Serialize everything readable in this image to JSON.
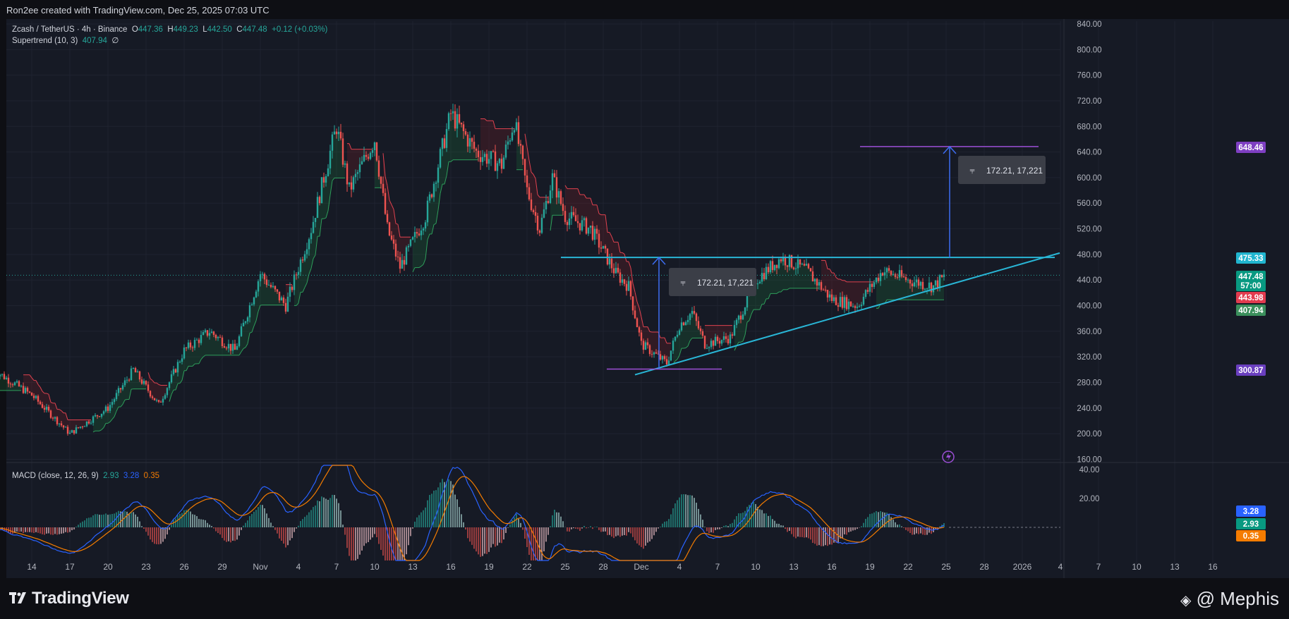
{
  "header": {
    "credit": "Ron2ee created with TradingView.com, Dec 25, 2025 07:03 UTC"
  },
  "legend": {
    "symbol": "Zcash / TetherUS · 4h · Binance",
    "open_label": "O",
    "open": "447.36",
    "high_label": "H",
    "high": "449.23",
    "low_label": "L",
    "low": "442.50",
    "close_label": "C",
    "close": "447.48",
    "change": "+0.12 (+0.03%)",
    "supertrend_label": "Supertrend (10, 3)",
    "supertrend_value": "407.94",
    "supertrend_symbol": "∅"
  },
  "macd_legend": {
    "label": "MACD (close, 12, 26, 9)",
    "v1": "2.93",
    "v2": "3.28",
    "v3": "0.35"
  },
  "measure_labels": [
    {
      "icon": "⫧",
      "text": "172.21, 17,221"
    },
    {
      "icon": "⫧",
      "text": "172.21, 17,221"
    }
  ],
  "price_badges": [
    {
      "text": "648.46",
      "color": "#7e3fc2"
    },
    {
      "text": "475.33",
      "color": "#21b5cf"
    },
    {
      "text": "447.48",
      "color": "#089981"
    },
    {
      "text": "57:00",
      "color": "#089981"
    },
    {
      "text": "443.98",
      "color": "#e23b4f"
    },
    {
      "text": "407.94",
      "color": "#3b8f5c"
    },
    {
      "text": "300.87",
      "color": "#6a3fbf"
    }
  ],
  "macd_badges": [
    {
      "text": "3.28",
      "color": "#2962ff"
    },
    {
      "text": "2.93",
      "color": "#089981"
    },
    {
      "text": "0.35",
      "color": "#f57c00"
    }
  ],
  "footer": {
    "logo": "TradingView",
    "watermark": "@ Mephis"
  },
  "colors": {
    "up": "#26a69a",
    "down": "#ef5350",
    "trendline": "#29b6d6",
    "measure": "#3d6df2",
    "target": "#9c4fd6",
    "supertrend_up": "#1d6b3a",
    "supertrend_down": "#7a1f26"
  },
  "chart_data": {
    "type": "candlestick",
    "title": "Zcash / TetherUS · 4h · Binance",
    "y_axis_ticks": [
      840,
      800,
      760,
      720,
      680,
      640,
      600,
      560,
      520,
      480,
      440,
      400,
      360,
      320,
      280,
      240,
      200,
      160
    ],
    "ylim": [
      155,
      840
    ],
    "macd_axis_ticks": [
      40,
      20
    ],
    "x_axis_ticks": [
      "14",
      "17",
      "20",
      "23",
      "26",
      "29",
      "Nov",
      "4",
      "7",
      "10",
      "13",
      "16",
      "19",
      "22",
      "25",
      "28",
      "Dec",
      "4",
      "7",
      "10",
      "13",
      "16",
      "19",
      "22",
      "25",
      "28",
      "2026",
      "4",
      "7",
      "10",
      "13",
      "16"
    ],
    "price_path_anchors": [
      {
        "x": "Oct 11",
        "y": 300
      },
      {
        "x": "Oct 14",
        "y": 260
      },
      {
        "x": "Oct 17",
        "y": 200
      },
      {
        "x": "Oct 20",
        "y": 240
      },
      {
        "x": "Oct 22",
        "y": 300
      },
      {
        "x": "Oct 24",
        "y": 245
      },
      {
        "x": "Oct 26",
        "y": 330
      },
      {
        "x": "Oct 28",
        "y": 360
      },
      {
        "x": "Oct 30",
        "y": 330
      },
      {
        "x": "Nov 1",
        "y": 450
      },
      {
        "x": "Nov 3",
        "y": 400
      },
      {
        "x": "Nov 5",
        "y": 520
      },
      {
        "x": "Nov 7",
        "y": 680
      },
      {
        "x": "Nov 8",
        "y": 580
      },
      {
        "x": "Nov 10",
        "y": 660
      },
      {
        "x": "Nov 11",
        "y": 520
      },
      {
        "x": "Nov 12",
        "y": 460
      },
      {
        "x": "Nov 14",
        "y": 540
      },
      {
        "x": "Nov 16",
        "y": 700
      },
      {
        "x": "Nov 18",
        "y": 640
      },
      {
        "x": "Nov 20",
        "y": 620
      },
      {
        "x": "Nov 21",
        "y": 690
      },
      {
        "x": "Nov 22",
        "y": 580
      },
      {
        "x": "Nov 23",
        "y": 520
      },
      {
        "x": "Nov 24",
        "y": 600
      },
      {
        "x": "Nov 25",
        "y": 540
      },
      {
        "x": "Nov 27",
        "y": 520
      },
      {
        "x": "Nov 29",
        "y": 450
      },
      {
        "x": "Nov 30",
        "y": 430
      },
      {
        "x": "Dec 1",
        "y": 340
      },
      {
        "x": "Dec 3",
        "y": 310
      },
      {
        "x": "Dec 4",
        "y": 370
      },
      {
        "x": "Dec 5",
        "y": 390
      },
      {
        "x": "Dec 6",
        "y": 340
      },
      {
        "x": "Dec 8",
        "y": 350
      },
      {
        "x": "Dec 10",
        "y": 440
      },
      {
        "x": "Dec 12",
        "y": 475
      },
      {
        "x": "Dec 14",
        "y": 455
      },
      {
        "x": "Dec 16",
        "y": 410
      },
      {
        "x": "Dec 18",
        "y": 400
      },
      {
        "x": "Dec 20",
        "y": 455
      },
      {
        "x": "Dec 22",
        "y": 440
      },
      {
        "x": "Dec 24",
        "y": 430
      },
      {
        "x": "Dec 25",
        "y": 447.48
      }
    ],
    "annotations": {
      "resistance": 475.33,
      "ascending_trendline": [
        {
          "x": "Dec 2",
          "y": 292
        },
        {
          "x": "Dec 28",
          "y": 458
        }
      ],
      "low_line": 300.87,
      "target": 648.46,
      "measure_move": "172.21, 17,221"
    }
  }
}
